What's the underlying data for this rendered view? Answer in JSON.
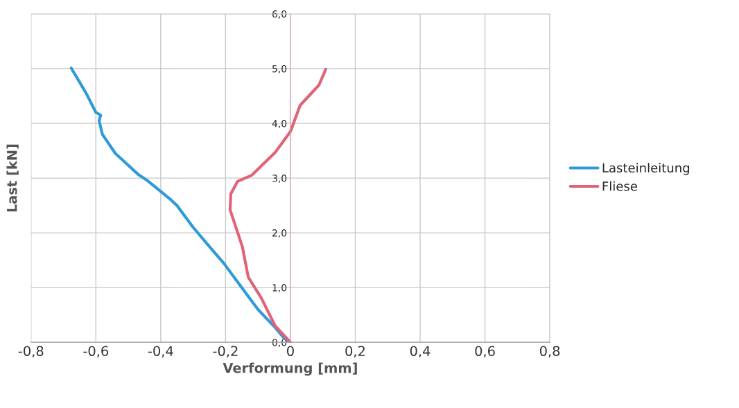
{
  "chart_data": {
    "type": "line",
    "xlabel": "Verformung [mm]",
    "ylabel": "Last [kN]",
    "xlim": [
      -0.8,
      0.8
    ],
    "ylim": [
      0,
      6
    ],
    "xticks": [
      {
        "value": -0.8,
        "label": "-0,8"
      },
      {
        "value": -0.6,
        "label": "-0,6"
      },
      {
        "value": -0.4,
        "label": "-0,4"
      },
      {
        "value": -0.2,
        "label": "-0,2"
      },
      {
        "value": 0,
        "label": "0"
      },
      {
        "value": 0.2,
        "label": "0,2"
      },
      {
        "value": 0.4,
        "label": "0,4"
      },
      {
        "value": 0.6,
        "label": "0,6"
      },
      {
        "value": 0.8,
        "label": "0,8"
      }
    ],
    "yticks": [
      {
        "value": 0,
        "label": "0,0"
      },
      {
        "value": 1,
        "label": "1,0"
      },
      {
        "value": 2,
        "label": "2,0"
      },
      {
        "value": 3,
        "label": "3,0"
      },
      {
        "value": 4,
        "label": "4,0"
      },
      {
        "value": 5,
        "label": "5,0"
      },
      {
        "value": 6,
        "label": "6,0"
      }
    ],
    "grid": true,
    "legend": "right",
    "marker": "none",
    "line_style": "solid",
    "series": [
      {
        "name": "Lasteinleitung",
        "color": "#2e9ad6",
        "x": [
          -0.676,
          -0.63,
          -0.6,
          -0.585,
          -0.59,
          -0.58,
          -0.54,
          -0.468,
          -0.44,
          -0.368,
          -0.35,
          -0.3,
          -0.25,
          -0.205,
          -0.15,
          -0.1,
          -0.047,
          -0.02,
          0
        ],
        "values": [
          5.01,
          4.55,
          4.2,
          4.15,
          4.05,
          3.8,
          3.45,
          3.06,
          2.95,
          2.6,
          2.5,
          2.1,
          1.75,
          1.44,
          1.0,
          0.6,
          0.27,
          0.08,
          0
        ]
      },
      {
        "name": "Fliese",
        "color": "#e06377",
        "x": [
          0.109,
          0.088,
          0.03,
          0,
          -0.047,
          -0.12,
          -0.163,
          -0.184,
          -0.186,
          -0.148,
          -0.13,
          -0.09,
          -0.047,
          0
        ],
        "values": [
          4.99,
          4.7,
          4.33,
          3.85,
          3.47,
          3.05,
          2.94,
          2.71,
          2.42,
          1.74,
          1.19,
          0.81,
          0.3,
          0
        ]
      }
    ]
  }
}
